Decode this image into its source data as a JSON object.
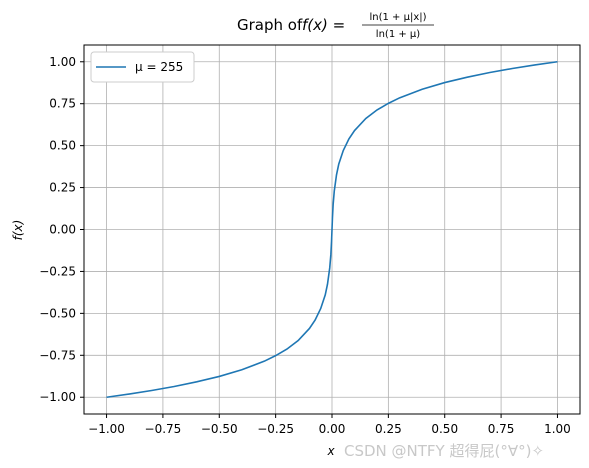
{
  "chart_data": {
    "type": "line",
    "title": {
      "prefix": "Graph of ",
      "fx": "f(x) =",
      "numerator": "ln(1 + μ|x|)",
      "denominator": "ln(1 + μ)"
    },
    "xlabel": "x",
    "ylabel": "f(x)",
    "xlim": [
      -1.1,
      1.1
    ],
    "ylim": [
      -1.1,
      1.1
    ],
    "xticks": [
      -1.0,
      -0.75,
      -0.5,
      -0.25,
      0.0,
      0.25,
      0.5,
      0.75,
      1.0
    ],
    "xtick_labels": [
      "−1.00",
      "−0.75",
      "−0.50",
      "−0.25",
      "0.00",
      "0.25",
      "0.50",
      "0.75",
      "1.00"
    ],
    "yticks": [
      -1.0,
      -0.75,
      -0.5,
      -0.25,
      0.0,
      0.25,
      0.5,
      0.75,
      1.0
    ],
    "ytick_labels": [
      "−1.00",
      "−0.75",
      "−0.50",
      "−0.25",
      "0.00",
      "0.25",
      "0.50",
      "0.75",
      "1.00"
    ],
    "grid": true,
    "legend_position": "top-left",
    "series": [
      {
        "name": "μ = 255",
        "color": "#1f77b4",
        "x": [
          -1.0,
          -0.9,
          -0.8,
          -0.7,
          -0.6,
          -0.5,
          -0.4,
          -0.3,
          -0.25,
          -0.2,
          -0.15,
          -0.1,
          -0.075,
          -0.05,
          -0.03,
          -0.02,
          -0.01,
          -0.005,
          -0.002,
          0.0,
          0.002,
          0.005,
          0.01,
          0.02,
          0.03,
          0.05,
          0.075,
          0.1,
          0.15,
          0.2,
          0.25,
          0.3,
          0.4,
          0.5,
          0.6,
          0.7,
          0.8,
          0.9,
          1.0
        ],
        "y": [
          -1.0,
          -0.981,
          -0.96,
          -0.936,
          -0.908,
          -0.876,
          -0.836,
          -0.785,
          -0.752,
          -0.713,
          -0.662,
          -0.59,
          -0.54,
          -0.471,
          -0.39,
          -0.326,
          -0.228,
          -0.148,
          -0.07,
          0.0,
          0.07,
          0.148,
          0.228,
          0.326,
          0.39,
          0.471,
          0.54,
          0.59,
          0.662,
          0.713,
          0.752,
          0.785,
          0.836,
          0.876,
          0.908,
          0.936,
          0.96,
          0.981,
          1.0
        ]
      }
    ]
  },
  "watermark": "CSDN @NTFY 超得屁(°∀°)✧"
}
